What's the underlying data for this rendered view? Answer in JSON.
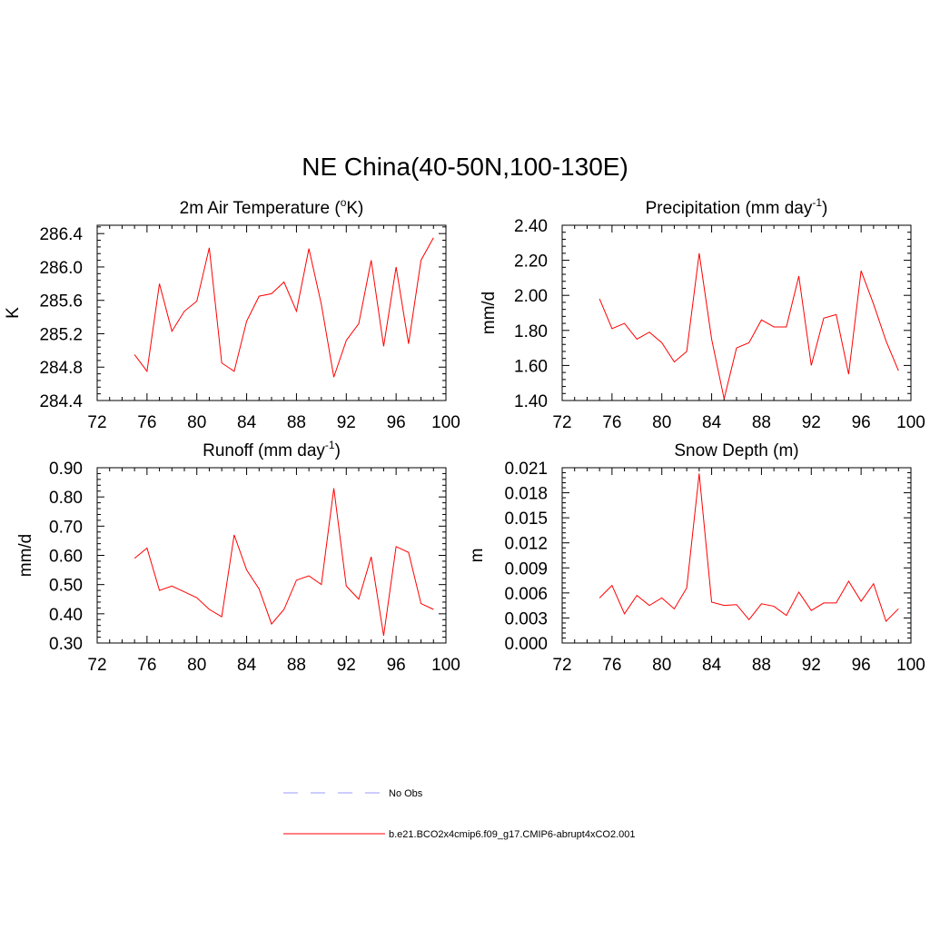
{
  "figure": {
    "title": "NE China(40-50N,100-130E)"
  },
  "colors": {
    "model_line": "#ff0000",
    "obs_line": "#9999ff",
    "axis": "#000000"
  },
  "legend": {
    "items": [
      {
        "label": "No Obs",
        "style": "dashed",
        "color": "#9999ff"
      },
      {
        "label": "b.e21.BCO2x4cmip6.f09_g17.CMIP6-abrupt4xCO2.001",
        "style": "solid",
        "color": "#ff0000"
      }
    ]
  },
  "chart_data": [
    {
      "type": "line",
      "title": "2m Air Temperature (",
      "title_sup": "o",
      "title_tail": "K)",
      "xlabel": "",
      "ylabel": "K",
      "xlim": [
        72,
        100
      ],
      "ylim": [
        284.4,
        286.5
      ],
      "xticks": [
        72,
        76,
        80,
        84,
        88,
        92,
        96,
        100
      ],
      "yticks": [
        284.4,
        284.8,
        285.2,
        285.6,
        286.0,
        286.4
      ],
      "ytick_labels": [
        "284.4",
        "284.8",
        "285.2",
        "285.6",
        "286.0",
        "286.4"
      ],
      "series": [
        {
          "name": "b.e21.BCO2x4cmip6.f09_g17.CMIP6-abrupt4xCO2.001",
          "x": [
            75,
            76,
            77,
            78,
            79,
            80,
            81,
            82,
            83,
            84,
            85,
            86,
            87,
            88,
            89,
            90,
            91,
            92,
            93,
            94,
            95,
            96,
            97,
            98,
            99
          ],
          "values": [
            284.95,
            284.75,
            285.8,
            285.23,
            285.47,
            285.59,
            286.23,
            284.85,
            284.75,
            285.35,
            285.65,
            285.68,
            285.82,
            285.47,
            286.22,
            285.55,
            284.68,
            285.12,
            285.32,
            286.08,
            285.05,
            286.0,
            285.08,
            286.08,
            286.35
          ]
        }
      ]
    },
    {
      "type": "line",
      "title": "Precipitation (mm day",
      "title_sup": "-1",
      "title_tail": ")",
      "xlabel": "",
      "ylabel": "mm/d",
      "xlim": [
        72,
        100
      ],
      "ylim": [
        1.4,
        2.4
      ],
      "xticks": [
        72,
        76,
        80,
        84,
        88,
        92,
        96,
        100
      ],
      "yticks": [
        1.4,
        1.6,
        1.8,
        2.0,
        2.2,
        2.4
      ],
      "ytick_labels": [
        "1.40",
        "1.60",
        "1.80",
        "2.00",
        "2.20",
        "2.40"
      ],
      "series": [
        {
          "name": "b.e21.BCO2x4cmip6.f09_g17.CMIP6-abrupt4xCO2.001",
          "x": [
            75,
            76,
            77,
            78,
            79,
            80,
            81,
            82,
            83,
            84,
            85,
            86,
            87,
            88,
            89,
            90,
            91,
            92,
            93,
            94,
            95,
            96,
            97,
            98,
            99
          ],
          "values": [
            1.98,
            1.81,
            1.84,
            1.75,
            1.79,
            1.73,
            1.62,
            1.68,
            2.24,
            1.75,
            1.41,
            1.7,
            1.73,
            1.86,
            1.82,
            1.82,
            2.11,
            1.6,
            1.87,
            1.89,
            1.55,
            2.14,
            1.95,
            1.74,
            1.57
          ]
        }
      ]
    },
    {
      "type": "line",
      "title": "Runoff (mm day",
      "title_sup": "-1",
      "title_tail": ")",
      "xlabel": "",
      "ylabel": "mm/d",
      "xlim": [
        72,
        100
      ],
      "ylim": [
        0.3,
        0.9
      ],
      "xticks": [
        72,
        76,
        80,
        84,
        88,
        92,
        96,
        100
      ],
      "yticks": [
        0.3,
        0.4,
        0.5,
        0.6,
        0.7,
        0.8,
        0.9
      ],
      "ytick_labels": [
        "0.30",
        "0.40",
        "0.50",
        "0.60",
        "0.70",
        "0.80",
        "0.90"
      ],
      "series": [
        {
          "name": "b.e21.BCO2x4cmip6.f09_g17.CMIP6-abrupt4xCO2.001",
          "x": [
            75,
            76,
            77,
            78,
            79,
            80,
            81,
            82,
            83,
            84,
            85,
            86,
            87,
            88,
            89,
            90,
            91,
            92,
            93,
            94,
            95,
            96,
            97,
            98,
            99
          ],
          "values": [
            0.59,
            0.625,
            0.48,
            0.495,
            0.475,
            0.455,
            0.415,
            0.39,
            0.67,
            0.55,
            0.485,
            0.365,
            0.415,
            0.515,
            0.53,
            0.5,
            0.83,
            0.495,
            0.45,
            0.595,
            0.325,
            0.63,
            0.61,
            0.435,
            0.415
          ]
        }
      ]
    },
    {
      "type": "line",
      "title": "Snow Depth (m)",
      "title_sup": "",
      "title_tail": "",
      "xlabel": "",
      "ylabel": "m",
      "xlim": [
        72,
        100
      ],
      "ylim": [
        0.0,
        0.021
      ],
      "xticks": [
        72,
        76,
        80,
        84,
        88,
        92,
        96,
        100
      ],
      "yticks": [
        0.0,
        0.003,
        0.006,
        0.009,
        0.012,
        0.015,
        0.018,
        0.021
      ],
      "ytick_labels": [
        "0.000",
        "0.003",
        "0.006",
        "0.009",
        "0.012",
        "0.015",
        "0.018",
        "0.021"
      ],
      "series": [
        {
          "name": "b.e21.BCO2x4cmip6.f09_g17.CMIP6-abrupt4xCO2.001",
          "x": [
            75,
            76,
            77,
            78,
            79,
            80,
            81,
            82,
            83,
            84,
            85,
            86,
            87,
            88,
            89,
            90,
            91,
            92,
            93,
            94,
            95,
            96,
            97,
            98,
            99
          ],
          "values": [
            0.0054,
            0.0069,
            0.0035,
            0.0057,
            0.0045,
            0.0054,
            0.0041,
            0.0066,
            0.0203,
            0.0049,
            0.0045,
            0.0046,
            0.0028,
            0.0047,
            0.0044,
            0.0033,
            0.0061,
            0.0039,
            0.0048,
            0.0048,
            0.0074,
            0.005,
            0.0071,
            0.0026,
            0.0041
          ]
        }
      ]
    }
  ]
}
